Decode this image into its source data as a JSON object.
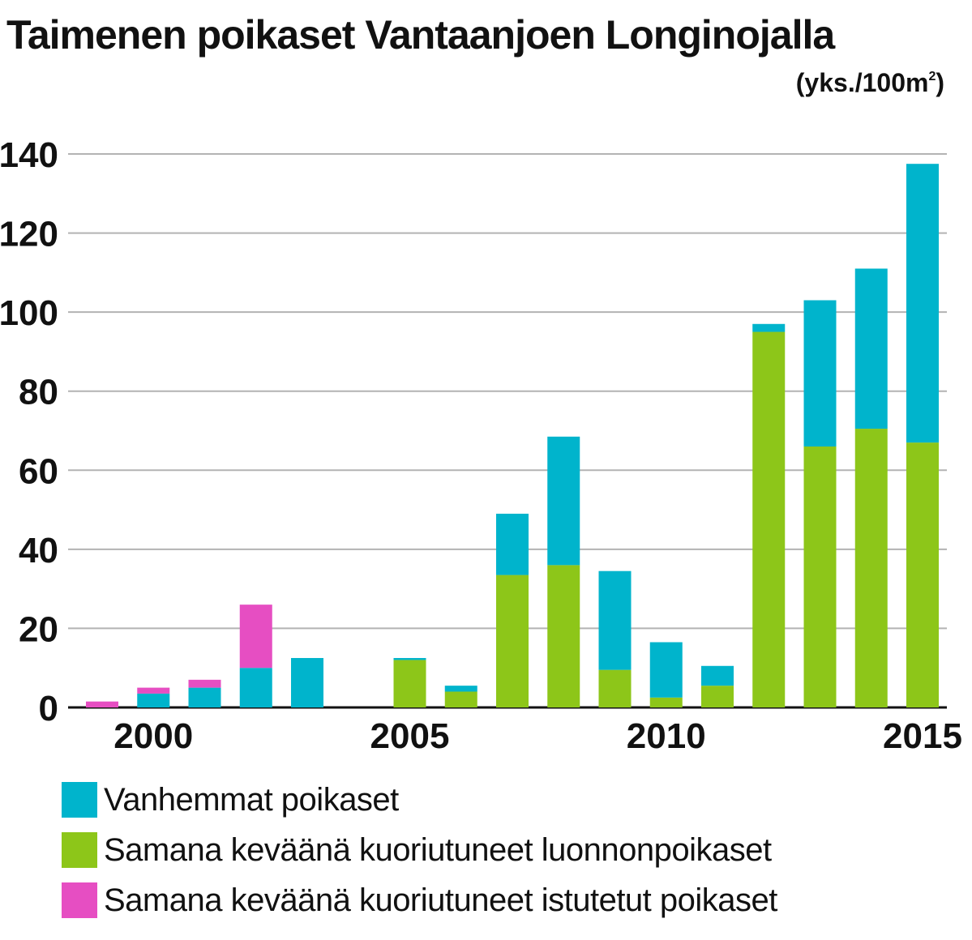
{
  "title": "Taimenen poikaset Vantaanjoen Longinojalla",
  "unit": {
    "text": "(yks./100m",
    "sup": "2",
    "close": ")"
  },
  "colors": {
    "older": "#00b4cc",
    "natural": "#8dc619",
    "stocked": "#e64ec2",
    "grid": "#b3b3b3",
    "axis": "#111111"
  },
  "legend": [
    {
      "label": "Vanhemmat poikaset",
      "series": "older"
    },
    {
      "label": "Samana keväänä kuoriutuneet luonnonpoikaset",
      "series": "natural"
    },
    {
      "label": "Samana keväänä kuoriutuneet istutetut poikaset",
      "series": "stocked"
    }
  ],
  "chart_data": {
    "type": "bar",
    "stacked": true,
    "title": "Taimenen poikaset Vantaanjoen Longinojalla",
    "ylabel": "(yks./100m2)",
    "xlabel": "",
    "ylim": [
      0,
      140
    ],
    "yticks": [
      0,
      20,
      40,
      60,
      80,
      100,
      120,
      140
    ],
    "xtick_labels": [
      "2000",
      "2005",
      "2010",
      "2015"
    ],
    "categories": [
      1999,
      2000,
      2001,
      2002,
      2003,
      2004,
      2005,
      2006,
      2007,
      2008,
      2009,
      2010,
      2011,
      2012,
      2013,
      2014,
      2015
    ],
    "series": [
      {
        "name": "Samana keväänä kuoriutuneet luonnonpoikaset",
        "key": "natural",
        "values": [
          0,
          0,
          0,
          0,
          0,
          0,
          12,
          4,
          33.5,
          36,
          9.5,
          2.5,
          5.5,
          95,
          66,
          70.5,
          67
        ]
      },
      {
        "name": "Vanhemmat poikaset",
        "key": "older",
        "values": [
          0,
          3.5,
          5,
          10,
          12.5,
          0,
          0.5,
          1.5,
          15.5,
          32.5,
          25,
          14,
          5,
          2,
          37,
          40.5,
          70.5
        ]
      },
      {
        "name": "Samana keväänä kuoriutuneet istutetut poikaset",
        "key": "stocked",
        "values": [
          1.5,
          1.5,
          2,
          16,
          0,
          0,
          0,
          0,
          0,
          0,
          0,
          0,
          0,
          0,
          0,
          0,
          0
        ]
      }
    ]
  }
}
